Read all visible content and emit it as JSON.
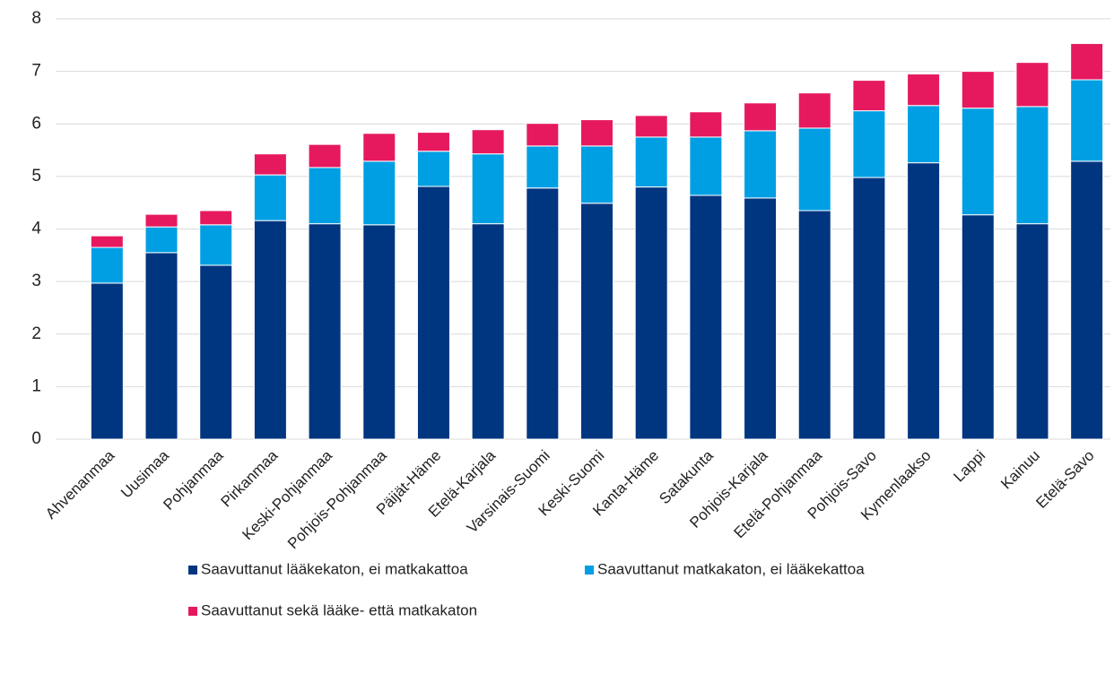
{
  "chart_data": {
    "type": "stacked_bar",
    "categories": [
      "Ahvenanmaa",
      "Uusimaa",
      "Pohjanmaa",
      "Pirkanmaa",
      "Keski-Pohjanmaa",
      "Pohjois-Pohjanmaa",
      "Päijät-Häme",
      "Etelä-Karjala",
      "Varsinais-Suomi",
      "Keski-Suomi",
      "Kanta-Häme",
      "Satakunta",
      "Pohjois-Karjala",
      "Etelä-Pohjanmaa",
      "Pohjois-Savo",
      "Kymenlaakso",
      "Lappi",
      "Kainuu",
      "Etelä-Savo"
    ],
    "series": [
      {
        "name": "Saavuttanut lääkekaton, ei matkakattoa",
        "color": "#003580",
        "values": [
          2.97,
          3.55,
          3.31,
          4.16,
          4.1,
          4.08,
          4.81,
          4.1,
          4.78,
          4.49,
          4.8,
          4.64,
          4.59,
          4.35,
          4.98,
          5.26,
          4.27,
          4.1,
          5.29
        ]
      },
      {
        "name": "Saavuttanut matkakaton, ei lääkekattoa",
        "color": "#009fe3",
        "values": [
          0.68,
          0.49,
          0.77,
          0.87,
          1.07,
          1.21,
          0.67,
          1.33,
          0.8,
          1.09,
          0.95,
          1.11,
          1.28,
          1.57,
          1.27,
          1.09,
          2.03,
          2.23,
          1.55
        ]
      },
      {
        "name": "Saavuttanut sekä lääke- että matkakaton",
        "color": "#e6195f",
        "values": [
          0.22,
          0.24,
          0.27,
          0.4,
          0.44,
          0.53,
          0.36,
          0.46,
          0.43,
          0.5,
          0.41,
          0.48,
          0.53,
          0.67,
          0.58,
          0.6,
          0.7,
          0.84,
          0.69
        ]
      }
    ],
    "ylim": [
      0,
      8
    ],
    "yticks": [
      0,
      1,
      2,
      3,
      4,
      5,
      6,
      7,
      8
    ],
    "grid": true
  }
}
